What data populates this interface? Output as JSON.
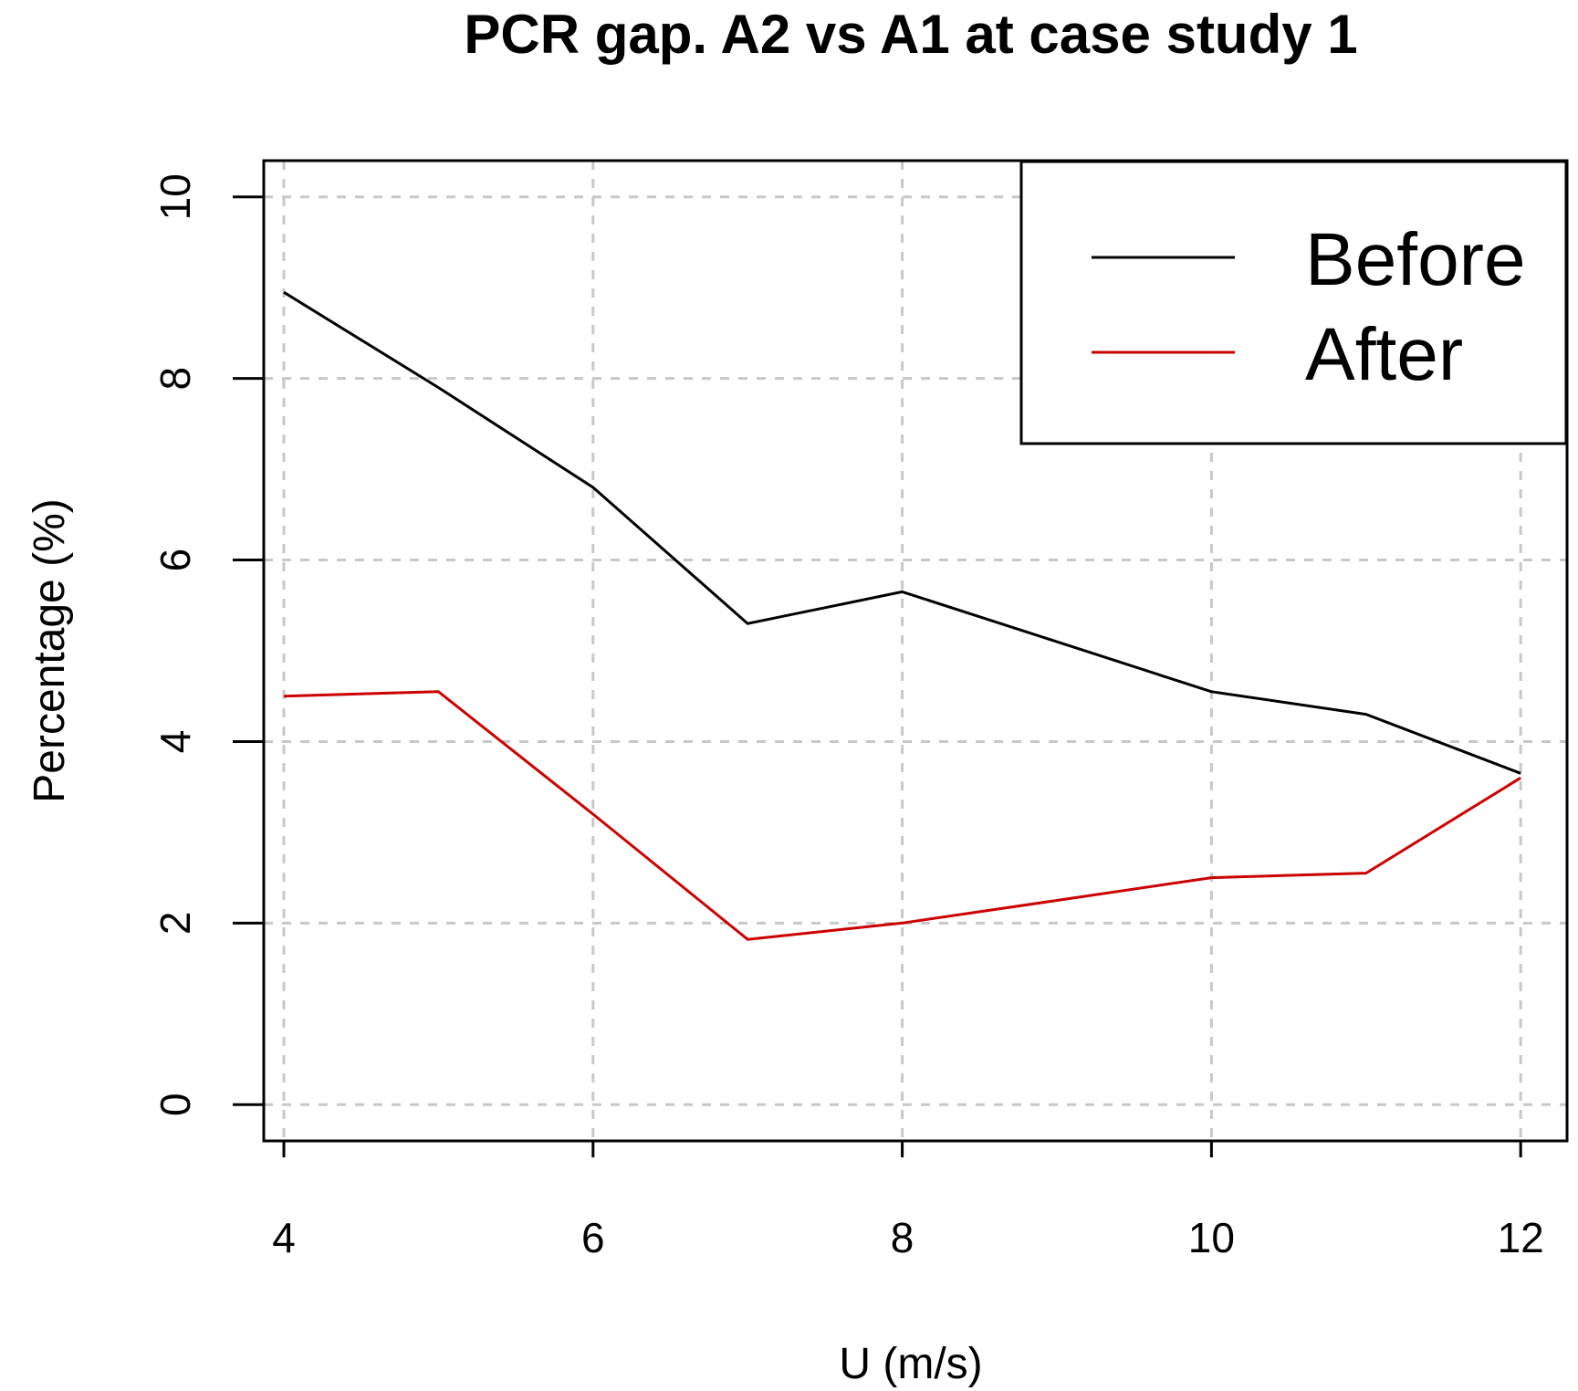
{
  "chart_data": {
    "type": "line",
    "title": "PCR gap. A2 vs A1 at case study 1",
    "xlabel": "U (m/s)",
    "ylabel": "Percentage (%)",
    "xlim": [
      3.87,
      12.3
    ],
    "ylim": [
      -0.4,
      10.4
    ],
    "xticks": [
      4,
      6,
      8,
      10,
      12
    ],
    "yticks": [
      0,
      2,
      4,
      6,
      8,
      10
    ],
    "xtick_labels": [
      "4",
      "6",
      "8",
      "10",
      "12"
    ],
    "ytick_labels": [
      "0",
      "2",
      "4",
      "6",
      "8",
      "10"
    ],
    "grid": true,
    "legend_position": "top-right",
    "series": [
      {
        "name": "Before",
        "color": "#000000",
        "x": [
          4,
          5,
          6,
          7,
          8,
          9,
          10,
          11,
          12
        ],
        "values": [
          8.95,
          7.9,
          6.8,
          5.3,
          5.65,
          5.1,
          4.55,
          4.3,
          3.65
        ]
      },
      {
        "name": "After",
        "color": "#cc0000",
        "x": [
          4,
          5,
          6,
          7,
          8,
          9,
          10,
          11,
          12
        ],
        "values": [
          4.5,
          4.55,
          3.2,
          1.82,
          2.0,
          2.25,
          2.5,
          2.55,
          3.6
        ]
      }
    ]
  }
}
